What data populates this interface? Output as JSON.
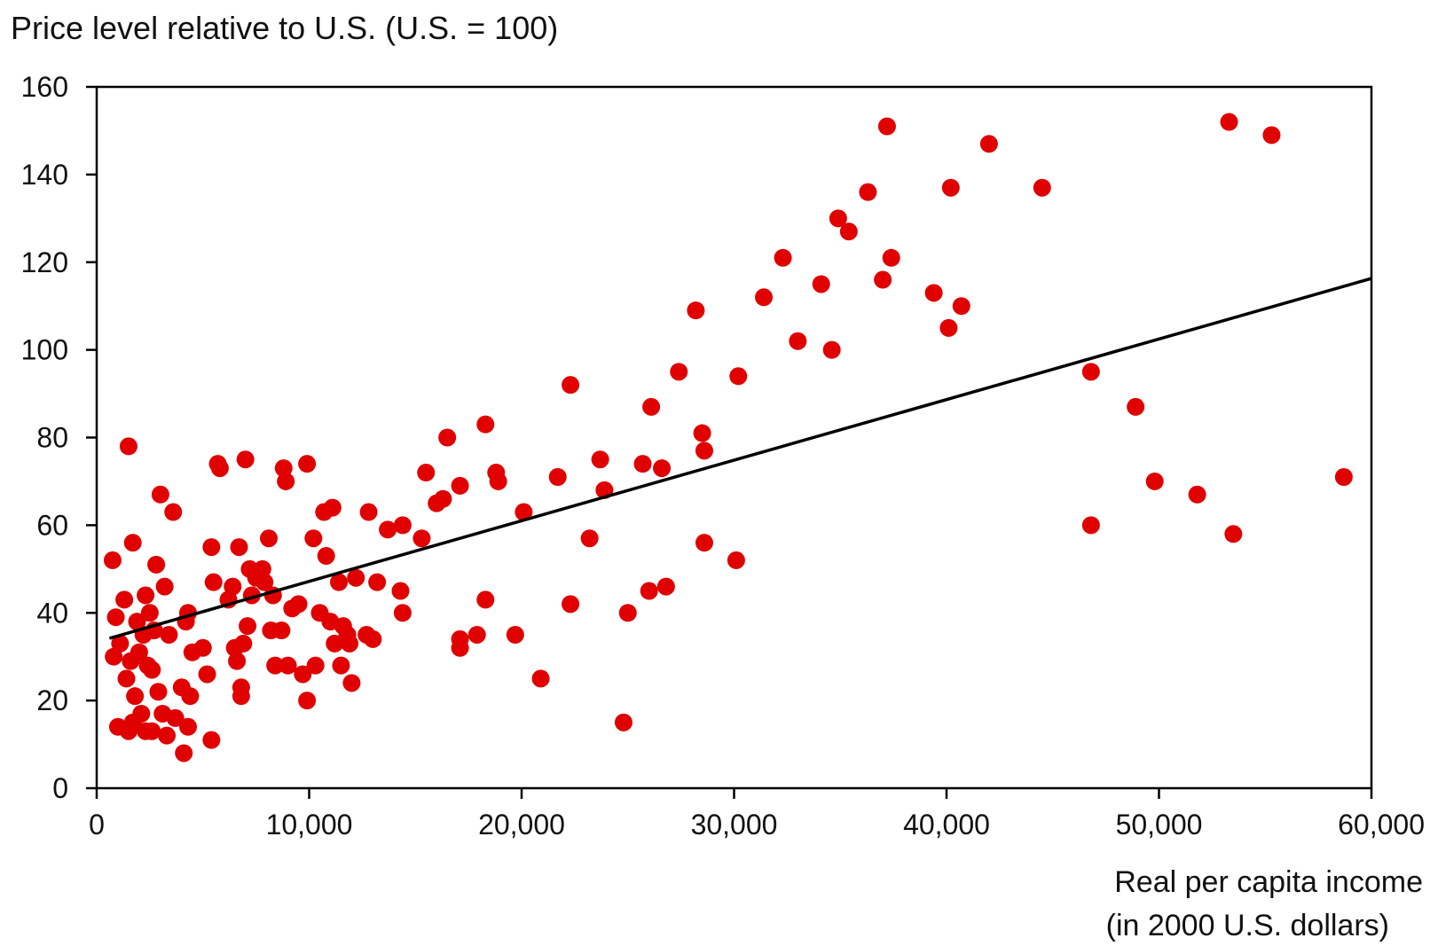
{
  "chart_data": {
    "type": "scatter",
    "title": "",
    "ylabel": "Price level relative to U.S. (U.S. = 100)",
    "xlabel_lines": [
      "Real per capita income",
      "(in 2000 U.S. dollars)"
    ],
    "xlim": [
      0,
      60000
    ],
    "ylim": [
      0,
      160
    ],
    "x_ticks": [
      0,
      10000,
      20000,
      30000,
      40000,
      50000,
      60000
    ],
    "x_tick_labels": [
      "0",
      "10,000",
      "20,000",
      "30,000",
      "40,000",
      "50,000",
      "60,000"
    ],
    "y_ticks": [
      0,
      20,
      40,
      60,
      80,
      100,
      120,
      140,
      160
    ],
    "y_tick_labels": [
      "0",
      "20",
      "40",
      "60",
      "80",
      "100",
      "120",
      "140",
      "160"
    ],
    "grid": false,
    "legend": "none",
    "point_color": "#e00000",
    "line_color": "#000000",
    "trend_line": {
      "x": [
        600,
        60000
      ],
      "y": [
        34.2,
        116.3
      ]
    },
    "points": [
      [
        750,
        52
      ],
      [
        1500,
        78
      ],
      [
        1700,
        56
      ],
      [
        2300,
        44
      ],
      [
        2500,
        40
      ],
      [
        3000,
        67
      ],
      [
        3200,
        46
      ],
      [
        2800,
        51
      ],
      [
        3600,
        63
      ],
      [
        800,
        30
      ],
      [
        900,
        39
      ],
      [
        1100,
        33
      ],
      [
        1300,
        43
      ],
      [
        1400,
        25
      ],
      [
        1600,
        29
      ],
      [
        1800,
        21
      ],
      [
        1900,
        38
      ],
      [
        2000,
        31
      ],
      [
        2200,
        35
      ],
      [
        2400,
        28
      ],
      [
        2600,
        27
      ],
      [
        2700,
        36
      ],
      [
        2900,
        22
      ],
      [
        3100,
        17
      ],
      [
        3400,
        35
      ],
      [
        3700,
        16
      ],
      [
        4000,
        23
      ],
      [
        4100,
        8
      ],
      [
        4200,
        38
      ],
      [
        4300,
        14
      ],
      [
        4400,
        21
      ],
      [
        4500,
        31
      ],
      [
        4300,
        40
      ],
      [
        1000,
        14
      ],
      [
        1500,
        13
      ],
      [
        1700,
        15
      ],
      [
        2100,
        17
      ],
      [
        2300,
        13
      ],
      [
        2600,
        13
      ],
      [
        3300,
        12
      ],
      [
        5400,
        11
      ],
      [
        5000,
        32
      ],
      [
        5200,
        26
      ],
      [
        5400,
        55
      ],
      [
        5500,
        47
      ],
      [
        5700,
        74
      ],
      [
        5800,
        73
      ],
      [
        6200,
        43
      ],
      [
        6400,
        46
      ],
      [
        6500,
        32
      ],
      [
        6600,
        29
      ],
      [
        6700,
        55
      ],
      [
        6800,
        23
      ],
      [
        6800,
        21
      ],
      [
        6900,
        33
      ],
      [
        7000,
        75
      ],
      [
        7100,
        37
      ],
      [
        7200,
        50
      ],
      [
        7300,
        44
      ],
      [
        7500,
        48
      ],
      [
        7800,
        50
      ],
      [
        7900,
        47
      ],
      [
        8100,
        57
      ],
      [
        8200,
        36
      ],
      [
        8300,
        44
      ],
      [
        8400,
        28
      ],
      [
        8700,
        36
      ],
      [
        8800,
        73
      ],
      [
        8900,
        70
      ],
      [
        9000,
        28
      ],
      [
        9200,
        41
      ],
      [
        9500,
        42
      ],
      [
        9700,
        26
      ],
      [
        9900,
        74
      ],
      [
        9900,
        20
      ],
      [
        10200,
        57
      ],
      [
        10300,
        28
      ],
      [
        10500,
        40
      ],
      [
        10700,
        63
      ],
      [
        10800,
        53
      ],
      [
        11100,
        64
      ],
      [
        11000,
        38
      ],
      [
        11200,
        33
      ],
      [
        11400,
        47
      ],
      [
        11500,
        28
      ],
      [
        11600,
        37
      ],
      [
        11800,
        35
      ],
      [
        11900,
        33
      ],
      [
        12000,
        24
      ],
      [
        12200,
        48
      ],
      [
        12700,
        35
      ],
      [
        12800,
        63
      ],
      [
        13000,
        34
      ],
      [
        13200,
        47
      ],
      [
        13700,
        59
      ],
      [
        14300,
        45
      ],
      [
        14400,
        60
      ],
      [
        14400,
        40
      ],
      [
        15300,
        57
      ],
      [
        15500,
        72
      ],
      [
        16000,
        65
      ],
      [
        16300,
        66
      ],
      [
        16500,
        80
      ],
      [
        17100,
        69
      ],
      [
        17100,
        34
      ],
      [
        17100,
        32
      ],
      [
        17900,
        35
      ],
      [
        18300,
        83
      ],
      [
        18300,
        43
      ],
      [
        18800,
        72
      ],
      [
        18900,
        70
      ],
      [
        19700,
        35
      ],
      [
        20100,
        63
      ],
      [
        20900,
        25
      ],
      [
        21700,
        71
      ],
      [
        22300,
        92
      ],
      [
        22300,
        42
      ],
      [
        23200,
        57
      ],
      [
        23700,
        75
      ],
      [
        23900,
        68
      ],
      [
        24800,
        15
      ],
      [
        25000,
        40
      ],
      [
        25700,
        74
      ],
      [
        26000,
        45
      ],
      [
        26100,
        87
      ],
      [
        26600,
        73
      ],
      [
        26800,
        46
      ],
      [
        27400,
        95
      ],
      [
        28200,
        109
      ],
      [
        28500,
        81
      ],
      [
        28600,
        77
      ],
      [
        28600,
        56
      ],
      [
        30100,
        52
      ],
      [
        30200,
        94
      ],
      [
        31400,
        112
      ],
      [
        32300,
        121
      ],
      [
        33000,
        102
      ],
      [
        34100,
        115
      ],
      [
        34600,
        100
      ],
      [
        34900,
        130
      ],
      [
        35400,
        127
      ],
      [
        36300,
        136
      ],
      [
        37000,
        116
      ],
      [
        37200,
        151
      ],
      [
        37400,
        121
      ],
      [
        39400,
        113
      ],
      [
        40100,
        105
      ],
      [
        40200,
        137
      ],
      [
        40700,
        110
      ],
      [
        42000,
        147
      ],
      [
        44500,
        137
      ],
      [
        46800,
        95
      ],
      [
        46800,
        60
      ],
      [
        48900,
        87
      ],
      [
        49800,
        70
      ],
      [
        51800,
        67
      ],
      [
        53300,
        152
      ],
      [
        53500,
        58
      ],
      [
        55300,
        149
      ],
      [
        58700,
        71
      ]
    ]
  }
}
